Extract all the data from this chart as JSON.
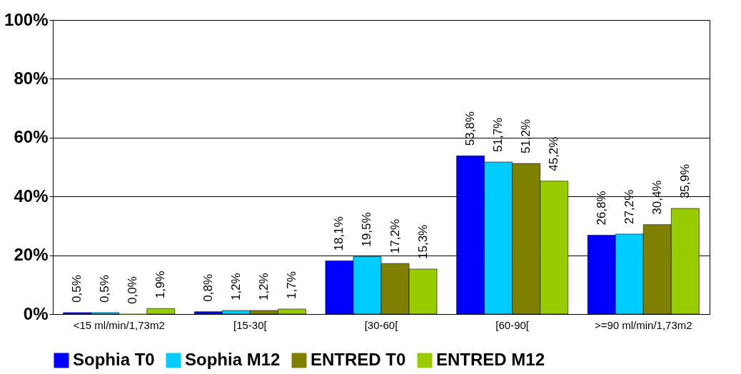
{
  "chart_data": {
    "type": "bar",
    "categories": [
      "<15 ml/min/1,73m2",
      "[15-30[",
      "[30-60[",
      "[60-90[",
      ">=90 ml/min/1,73m2"
    ],
    "series": [
      {
        "name": "Sophia T0",
        "color": "#0000ff",
        "values": [
          0.5,
          0.8,
          18.1,
          53.8,
          26.8
        ],
        "value_labels": [
          "0,5%",
          "0,8%",
          "18,1%",
          "53,8%",
          "26,8%"
        ]
      },
      {
        "name": "Sophia M12",
        "color": "#00ccff",
        "values": [
          0.5,
          1.2,
          19.5,
          51.7,
          27.2
        ],
        "value_labels": [
          "0,5%",
          "1,2%",
          "19,5%",
          "51,7%",
          "27,2%"
        ]
      },
      {
        "name": "ENTRED T0",
        "color": "#808000",
        "values": [
          0.0,
          1.2,
          17.2,
          51.2,
          30.4
        ],
        "value_labels": [
          "0,0%",
          "1,2%",
          "17,2%",
          "51,2%",
          "30,4%"
        ]
      },
      {
        "name": "ENTRED M12",
        "color": "#99cc00",
        "values": [
          1.9,
          1.7,
          15.3,
          45.2,
          35.9
        ],
        "value_labels": [
          "1,9%",
          "1,7%",
          "15,3%",
          "45,2%",
          "35,9%"
        ]
      }
    ],
    "ylim": [
      0,
      100
    ],
    "yticks": [
      {
        "value": 0,
        "label": "0%"
      },
      {
        "value": 20,
        "label": "20%"
      },
      {
        "value": 40,
        "label": "40%"
      },
      {
        "value": 60,
        "label": "60%"
      },
      {
        "value": 80,
        "label": "80%"
      },
      {
        "value": 100,
        "label": "100%"
      }
    ],
    "grid": "y",
    "legend": "bottom"
  }
}
